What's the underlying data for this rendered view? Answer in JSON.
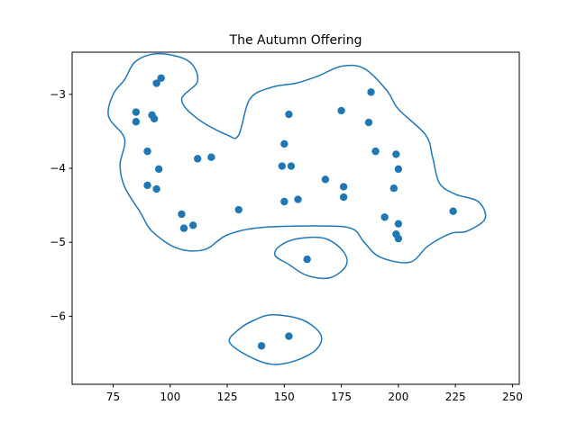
{
  "chart_data": {
    "type": "scatter",
    "title": "The Autumn Offering",
    "xlabel": "",
    "ylabel": "",
    "xlim": [
      57,
      253
    ],
    "ylim": [
      -6.92,
      -2.43
    ],
    "grid": false,
    "x_ticks": [
      75,
      100,
      125,
      150,
      175,
      200,
      225,
      250
    ],
    "y_ticks": [
      -6,
      -5,
      -4,
      -3
    ],
    "marker_color": "#1f77b4",
    "contour_color": "#1f77b4",
    "points": [
      {
        "x": 96,
        "y": -2.78
      },
      {
        "x": 94,
        "y": -2.85
      },
      {
        "x": 85,
        "y": -3.24
      },
      {
        "x": 92,
        "y": -3.28
      },
      {
        "x": 93,
        "y": -3.33
      },
      {
        "x": 85,
        "y": -3.37
      },
      {
        "x": 90,
        "y": -3.77
      },
      {
        "x": 95,
        "y": -4.01
      },
      {
        "x": 90,
        "y": -4.23
      },
      {
        "x": 94,
        "y": -4.28
      },
      {
        "x": 112,
        "y": -3.87
      },
      {
        "x": 118,
        "y": -3.85
      },
      {
        "x": 105,
        "y": -4.62
      },
      {
        "x": 106,
        "y": -4.81
      },
      {
        "x": 110,
        "y": -4.77
      },
      {
        "x": 130,
        "y": -4.56
      },
      {
        "x": 152,
        "y": -3.27
      },
      {
        "x": 150,
        "y": -3.67
      },
      {
        "x": 149,
        "y": -3.97
      },
      {
        "x": 153,
        "y": -3.97
      },
      {
        "x": 150,
        "y": -4.45
      },
      {
        "x": 156,
        "y": -4.42
      },
      {
        "x": 168,
        "y": -4.15
      },
      {
        "x": 175,
        "y": -3.22
      },
      {
        "x": 188,
        "y": -2.97
      },
      {
        "x": 187,
        "y": -3.38
      },
      {
        "x": 190,
        "y": -3.77
      },
      {
        "x": 176,
        "y": -4.25
      },
      {
        "x": 176,
        "y": -4.39
      },
      {
        "x": 199,
        "y": -3.81
      },
      {
        "x": 200,
        "y": -4.01
      },
      {
        "x": 198,
        "y": -4.27
      },
      {
        "x": 194,
        "y": -4.66
      },
      {
        "x": 200,
        "y": -4.75
      },
      {
        "x": 199,
        "y": -4.89
      },
      {
        "x": 200,
        "y": -4.95
      },
      {
        "x": 224,
        "y": -4.58
      },
      {
        "x": 160,
        "y": -5.23
      },
      {
        "x": 140,
        "y": -6.4
      },
      {
        "x": 152,
        "y": -6.27
      }
    ],
    "contours": [
      [
        [
          95,
          -2.45
        ],
        [
          108,
          -2.55
        ],
        [
          112,
          -2.82
        ],
        [
          105,
          -3.07
        ],
        [
          112,
          -3.33
        ],
        [
          125,
          -3.55
        ],
        [
          130,
          -3.55
        ],
        [
          135,
          -3.06
        ],
        [
          145,
          -2.9
        ],
        [
          155,
          -2.85
        ],
        [
          165,
          -2.75
        ],
        [
          175,
          -2.62
        ],
        [
          185,
          -2.65
        ],
        [
          195,
          -2.95
        ],
        [
          200,
          -3.2
        ],
        [
          212,
          -3.55
        ],
        [
          215,
          -3.85
        ],
        [
          218,
          -4.2
        ],
        [
          225,
          -4.35
        ],
        [
          235,
          -4.45
        ],
        [
          238,
          -4.68
        ],
        [
          230,
          -4.85
        ],
        [
          223,
          -4.88
        ],
        [
          213,
          -5.05
        ],
        [
          205,
          -5.27
        ],
        [
          192,
          -5.2
        ],
        [
          185,
          -5.0
        ],
        [
          180,
          -4.82
        ],
        [
          168,
          -4.78
        ],
        [
          140,
          -4.8
        ],
        [
          125,
          -4.9
        ],
        [
          115,
          -5.1
        ],
        [
          103,
          -5.08
        ],
        [
          92,
          -4.85
        ],
        [
          87,
          -4.6
        ],
        [
          80,
          -4.25
        ],
        [
          78,
          -3.95
        ],
        [
          80,
          -3.6
        ],
        [
          73,
          -3.3
        ],
        [
          75,
          -3.0
        ],
        [
          80,
          -2.8
        ],
        [
          85,
          -2.55
        ]
      ],
      [
        [
          156,
          -4.95
        ],
        [
          168,
          -4.95
        ],
        [
          176,
          -5.13
        ],
        [
          177,
          -5.32
        ],
        [
          170,
          -5.48
        ],
        [
          160,
          -5.45
        ],
        [
          152,
          -5.3
        ],
        [
          146,
          -5.18
        ],
        [
          148,
          -5.05
        ]
      ],
      [
        [
          145,
          -5.98
        ],
        [
          158,
          -6.05
        ],
        [
          166,
          -6.25
        ],
        [
          164,
          -6.45
        ],
        [
          155,
          -6.6
        ],
        [
          145,
          -6.65
        ],
        [
          135,
          -6.55
        ],
        [
          126,
          -6.35
        ],
        [
          130,
          -6.18
        ],
        [
          137,
          -6.05
        ]
      ]
    ]
  }
}
